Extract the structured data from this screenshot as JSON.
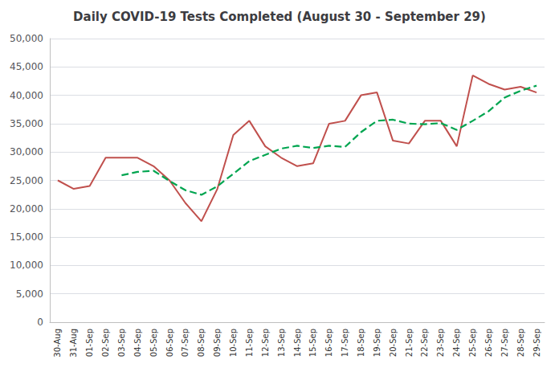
{
  "chart_data": {
    "type": "line",
    "title": "Daily COVID-19 Tests Completed (August 30 - September 29)",
    "categories": [
      "30-Aug",
      "31-Aug",
      "01-Sep",
      "02-Sep",
      "03-Sep",
      "04-Sep",
      "05-Sep",
      "06-Sep",
      "07-Sep",
      "08-Sep",
      "09-Sep",
      "10-Sep",
      "11-Sep",
      "12-Sep",
      "13-Sep",
      "14-Sep",
      "15-Sep",
      "16-Sep",
      "17-Sep",
      "18-Sep",
      "19-Sep",
      "20-Sep",
      "21-Sep",
      "22-Sep",
      "23-Sep",
      "24-Sep",
      "25-Sep",
      "26-Sep",
      "27-Sep",
      "28-Sep",
      "29-Sep"
    ],
    "series": [
      {
        "color": "#C0504D",
        "line_style": "solid",
        "values": [
          25000,
          23500,
          24000,
          29000,
          29000,
          29000,
          27500,
          25000,
          21000,
          17800,
          23500,
          33000,
          35500,
          31000,
          29000,
          27500,
          28000,
          35000,
          35500,
          40000,
          40500,
          32000,
          31500,
          35500,
          35500,
          31000,
          43500,
          42000,
          41000,
          41500,
          40500
        ]
      },
      {
        "color": "#00A550",
        "line_style": "dashed",
        "values": [
          null,
          null,
          null,
          null,
          25900,
          26500,
          26700,
          24900,
          23260,
          22460,
          23960,
          26160,
          28400,
          29500,
          30600,
          31100,
          30700,
          31100,
          30900,
          33500,
          35500,
          35700,
          35000,
          34900,
          35100,
          33900,
          35500,
          37200,
          39600,
          40800,
          41700
        ]
      }
    ],
    "ylim": [
      0,
      50000
    ],
    "yticks": [
      0,
      {
        "value": 5000,
        "label": "5,000"
      },
      {
        "value": 10000,
        "label": "10,000"
      },
      {
        "value": 15000,
        "label": "15,000"
      },
      {
        "value": 20000,
        "label": "20,000"
      },
      {
        "value": 25000,
        "label": "25,000"
      },
      {
        "value": 30000,
        "label": "30,000"
      },
      {
        "value": 35000,
        "label": "35,000"
      },
      {
        "value": 40000,
        "label": "40,000"
      },
      {
        "value": 45000,
        "label": "45,000"
      },
      {
        "value": 50000,
        "label": "50,000"
      }
    ],
    "grid": true
  }
}
